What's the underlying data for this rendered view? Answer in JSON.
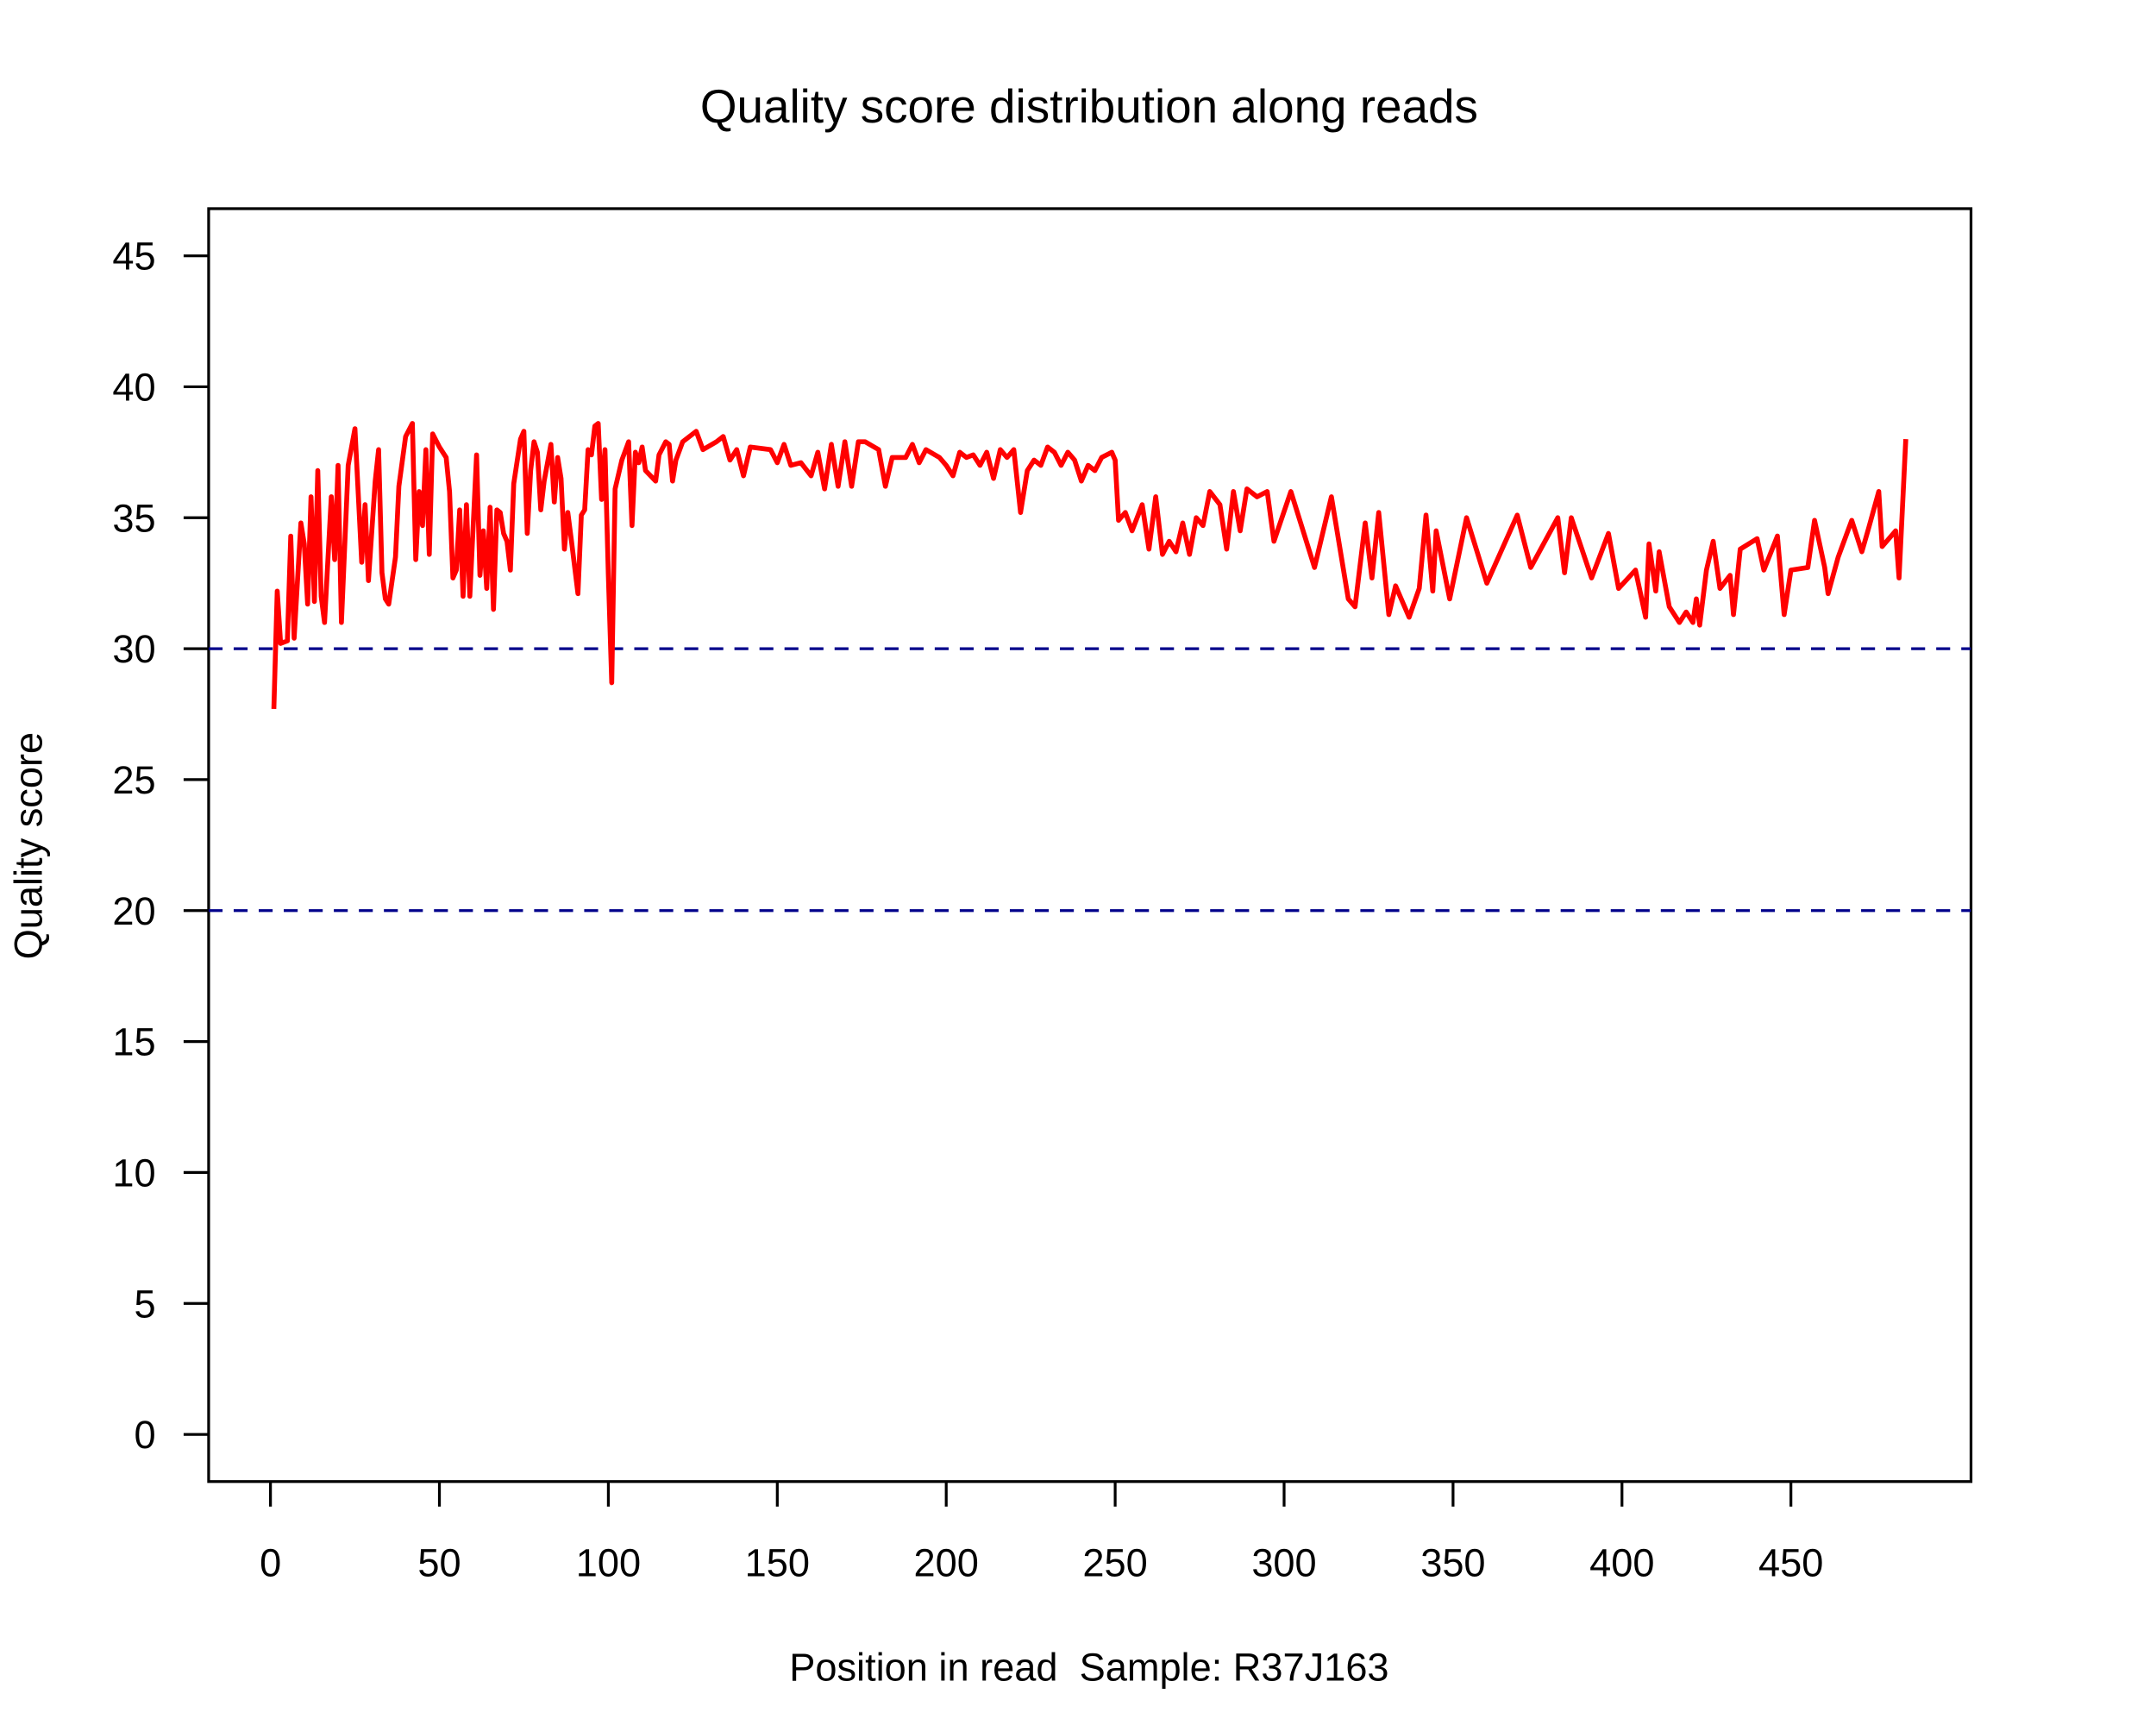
{
  "chart_data": {
    "type": "line",
    "title": "Quality score distribution along reads",
    "xlabel": "Position in read  Sample: R37J163",
    "ylabel": "Quality score",
    "xlim": [
      -18.3,
      503.3
    ],
    "ylim": [
      -1.8,
      46.8
    ],
    "xticks": [
      0,
      50,
      100,
      150,
      200,
      250,
      300,
      350,
      400,
      450
    ],
    "yticks": [
      0,
      5,
      10,
      15,
      20,
      25,
      30,
      35,
      40,
      45
    ],
    "reference_lines": [
      20,
      30
    ],
    "reference_color": "#00008b",
    "series": [
      {
        "color": "#ff0000",
        "x": [
          1,
          2,
          3,
          5,
          6,
          7,
          9,
          10,
          11,
          12,
          13,
          14,
          15,
          16,
          18,
          19,
          20,
          21,
          23,
          25,
          27,
          28,
          29,
          31,
          32,
          33,
          34,
          35,
          37,
          38,
          40,
          42,
          43,
          44,
          45,
          46,
          47,
          48,
          50,
          52,
          53,
          54,
          55,
          56,
          57,
          58,
          59,
          61,
          62,
          63,
          64,
          65,
          66,
          67,
          68,
          69,
          70,
          71,
          72,
          74,
          75,
          76,
          77,
          78,
          79,
          80,
          81,
          83,
          84,
          85,
          86,
          87,
          88,
          89,
          91,
          92,
          93,
          94,
          95,
          96,
          97,
          98,
          99,
          100,
          101,
          102,
          104,
          106,
          107,
          108,
          109,
          110,
          111,
          114,
          115,
          117,
          118,
          119,
          120,
          122,
          126,
          128,
          132,
          134,
          136,
          138,
          140,
          142,
          148,
          150,
          152,
          154,
          157,
          160,
          162,
          164,
          166,
          168,
          170,
          172,
          174,
          176,
          180,
          182,
          184,
          188,
          190,
          192,
          194,
          198,
          200,
          202,
          204,
          206,
          208,
          210,
          212,
          214,
          216,
          218,
          220,
          222,
          224,
          226,
          228,
          230,
          232,
          234,
          236,
          238,
          240,
          242,
          244,
          246,
          249,
          250,
          251,
          253,
          255,
          258,
          260,
          262,
          264,
          266,
          268,
          270,
          272,
          274,
          276,
          278,
          281,
          283,
          285,
          287,
          289,
          292,
          295,
          297,
          302,
          309,
          314,
          319,
          321,
          324,
          326,
          328,
          331,
          333,
          337,
          340,
          342,
          344,
          345,
          349,
          354,
          360,
          369,
          373,
          381,
          383,
          385,
          391,
          396,
          399,
          404,
          407,
          408,
          410,
          411,
          414,
          417,
          419,
          421,
          422,
          423,
          425,
          427,
          429,
          432,
          433,
          435,
          440,
          442,
          446,
          448,
          450,
          455,
          457,
          460,
          461,
          464,
          468,
          471,
          473,
          476,
          477,
          481,
          482,
          484
        ],
        "values": [
          27.7,
          32.2,
          30.2,
          30.3,
          34.3,
          30.4,
          34.8,
          34.0,
          31.7,
          35.8,
          31.8,
          36.8,
          32.0,
          31.0,
          35.8,
          33.4,
          37.0,
          31.0,
          37.0,
          38.4,
          33.3,
          35.5,
          32.6,
          36.4,
          37.6,
          32.9,
          31.9,
          31.7,
          33.5,
          36.2,
          38.1,
          38.6,
          33.4,
          36.0,
          34.7,
          37.6,
          33.6,
          38.2,
          37.7,
          37.3,
          36.0,
          32.7,
          33.0,
          35.3,
          32.0,
          35.5,
          32.0,
          37.4,
          32.8,
          34.5,
          32.3,
          35.4,
          31.5,
          35.3,
          35.2,
          34.4,
          34.1,
          33.0,
          36.3,
          38.0,
          38.3,
          34.4,
          36.8,
          37.9,
          37.5,
          35.3,
          36.4,
          37.8,
          35.6,
          37.3,
          36.5,
          33.8,
          35.2,
          34.2,
          32.1,
          35.1,
          35.3,
          37.6,
          37.4,
          38.5,
          38.6,
          35.7,
          37.6,
          32.8,
          28.7,
          36.1,
          37.2,
          37.9,
          34.7,
          37.5,
          37.1,
          37.7,
          36.8,
          36.4,
          37.4,
          37.9,
          37.8,
          36.4,
          37.2,
          37.9,
          38.3,
          37.6,
          37.9,
          38.1,
          37.2,
          37.6,
          36.6,
          37.7,
          37.6,
          37.1,
          37.8,
          37.0,
          37.1,
          36.6,
          37.5,
          36.1,
          37.8,
          36.2,
          37.9,
          36.2,
          37.9,
          37.9,
          37.6,
          36.2,
          37.3,
          37.3,
          37.8,
          37.1,
          37.6,
          37.3,
          37.0,
          36.6,
          37.5,
          37.3,
          37.4,
          37.0,
          37.5,
          36.5,
          37.6,
          37.3,
          37.6,
          35.2,
          36.8,
          37.2,
          37.0,
          37.7,
          37.5,
          37.0,
          37.5,
          37.2,
          36.4,
          37.0,
          36.8,
          37.3,
          37.5,
          37.2,
          34.9,
          35.2,
          34.5,
          35.5,
          33.8,
          35.8,
          33.6,
          34.1,
          33.7,
          34.8,
          33.6,
          35.0,
          34.7,
          36.0,
          35.5,
          33.8,
          36.0,
          34.5,
          36.1,
          35.8,
          36.0,
          34.1,
          36.0,
          33.1,
          35.8,
          31.9,
          31.6,
          34.8,
          32.7,
          35.2,
          31.3,
          32.4,
          31.2,
          32.3,
          35.1,
          32.2,
          34.5,
          31.9,
          35.0,
          32.5,
          35.1,
          33.1,
          35.0,
          32.9,
          35.0,
          32.7,
          34.4,
          32.3,
          33.0,
          31.2,
          34.0,
          32.2,
          33.7,
          31.6,
          31.0,
          31.4,
          31.0,
          31.9,
          30.9,
          33.0,
          34.1,
          32.3,
          32.8,
          31.3,
          33.8,
          34.2,
          33.0,
          34.3,
          31.3,
          33.0,
          33.1,
          34.9,
          33.1,
          32.1,
          33.5,
          34.9,
          33.7,
          34.6,
          36.0,
          33.9,
          34.5,
          32.7,
          38.0
        ]
      }
    ]
  }
}
